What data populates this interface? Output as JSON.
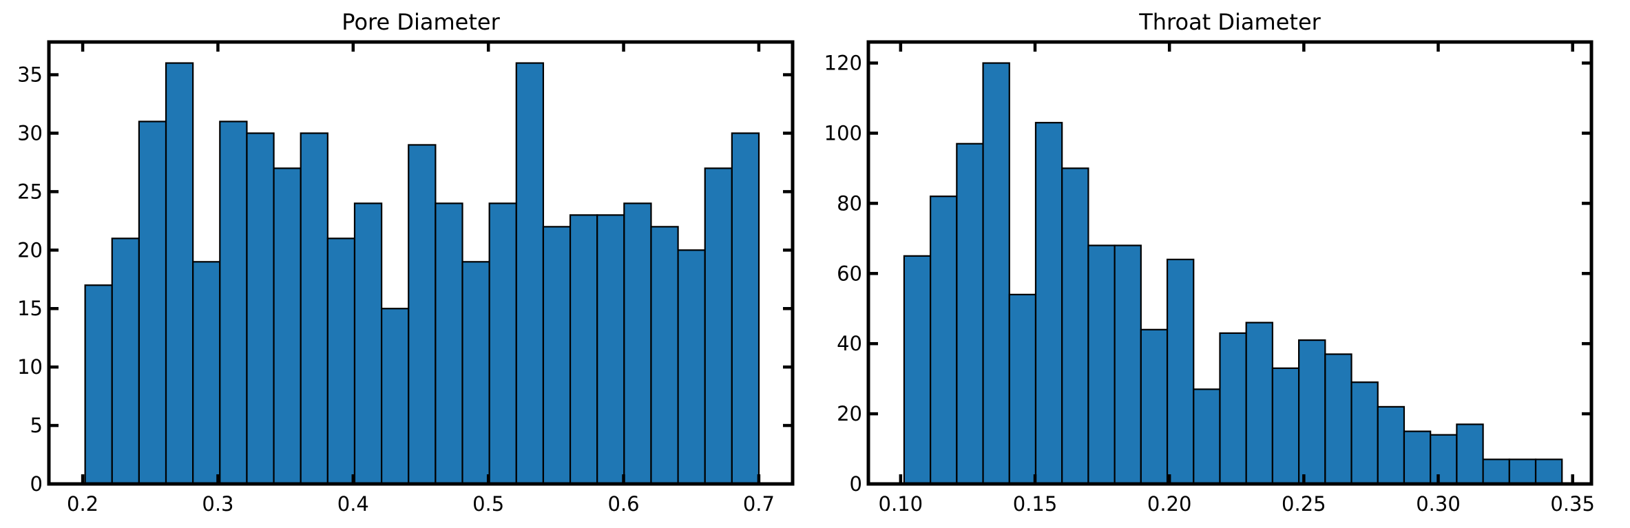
{
  "chart_data": [
    {
      "type": "bar",
      "title": "Pore Diameter",
      "xlabel": "",
      "ylabel": "",
      "bin_start": 0.2018,
      "bin_width": 0.01993,
      "values": [
        17,
        21,
        31,
        36,
        19,
        31,
        30,
        27,
        30,
        21,
        24,
        15,
        29,
        24,
        19,
        24,
        36,
        22,
        23,
        23,
        24,
        22,
        20,
        27,
        30
      ],
      "xlim": [
        0.175,
        0.725
      ],
      "ylim": [
        0,
        37.8
      ],
      "xticks": [
        0.2,
        0.3,
        0.4,
        0.5,
        0.6,
        0.7
      ],
      "xtick_labels": [
        "0.2",
        "0.3",
        "0.4",
        "0.5",
        "0.6",
        "0.7"
      ],
      "yticks": [
        0,
        5,
        10,
        15,
        20,
        25,
        30,
        35
      ],
      "ytick_labels": [
        "0",
        "5",
        "10",
        "15",
        "20",
        "25",
        "30",
        "35"
      ],
      "grid": false,
      "bar_color": "#1f77b4"
    },
    {
      "type": "bar",
      "title": "Throat Diameter",
      "xlabel": "",
      "ylabel": "",
      "bin_start": 0.1013,
      "bin_width": 0.00979,
      "values": [
        65,
        82,
        97,
        120,
        54,
        103,
        90,
        68,
        68,
        44,
        64,
        27,
        43,
        46,
        33,
        41,
        37,
        29,
        22,
        15,
        14,
        17,
        7,
        7,
        7
      ],
      "xlim": [
        0.088,
        0.357
      ],
      "ylim": [
        0,
        126
      ],
      "xticks": [
        0.1,
        0.15,
        0.2,
        0.25,
        0.3,
        0.35
      ],
      "xtick_labels": [
        "0.10",
        "0.15",
        "0.20",
        "0.25",
        "0.30",
        "0.35"
      ],
      "yticks": [
        0,
        20,
        40,
        60,
        80,
        100,
        120
      ],
      "ytick_labels": [
        "0",
        "20",
        "40",
        "60",
        "80",
        "100",
        "120"
      ],
      "grid": false,
      "bar_color": "#1f77b4"
    }
  ]
}
